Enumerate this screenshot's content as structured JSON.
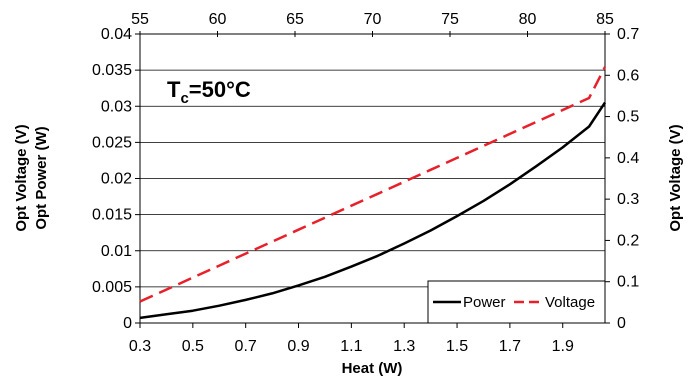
{
  "chart_data": {
    "type": "line",
    "x": [
      0.3,
      0.4,
      0.5,
      0.6,
      0.7,
      0.8,
      0.9,
      1.0,
      1.1,
      1.2,
      1.3,
      1.4,
      1.5,
      1.6,
      1.7,
      1.8,
      1.9,
      2.0,
      2.06
    ],
    "series": [
      {
        "name": "Power",
        "axis": "left",
        "color": "#000000",
        "dash": "solid",
        "values": [
          0.0007,
          0.0012,
          0.0017,
          0.0024,
          0.0032,
          0.0041,
          0.0052,
          0.0064,
          0.0078,
          0.0093,
          0.011,
          0.0128,
          0.0148,
          0.0169,
          0.0192,
          0.0217,
          0.0243,
          0.0272,
          0.0305
        ]
      },
      {
        "name": "Voltage",
        "axis": "right",
        "color": "#e8202a",
        "dash": "dashed",
        "values": [
          0.052,
          0.081,
          0.11,
          0.139,
          0.168,
          0.197,
          0.226,
          0.255,
          0.284,
          0.313,
          0.342,
          0.371,
          0.4,
          0.429,
          0.458,
          0.487,
          0.516,
          0.545,
          0.62
        ]
      }
    ],
    "xlabel": "Heat (W)",
    "xlim": [
      0.3,
      2.06
    ],
    "xticks": [
      "0.3",
      "0.5",
      "0.7",
      "0.9",
      "1.1",
      "1.3",
      "1.5",
      "1.7",
      "1.9"
    ],
    "x2ticks": [
      "55",
      "60",
      "65",
      "70",
      "75",
      "80",
      "85"
    ],
    "x2lim": [
      55,
      85
    ],
    "ylabel_outer": "Opt Voltage (V)",
    "ylabel": "Opt Power (W)",
    "ylim": [
      0,
      0.04
    ],
    "yticks": [
      "0",
      "0.005",
      "0.01",
      "0.015",
      "0.02",
      "0.025",
      "0.03",
      "0.035",
      "0.04"
    ],
    "y2label": "Opt Voltage (V)",
    "y2lim": [
      0,
      0.7
    ],
    "y2ticks": [
      "0",
      "0.1",
      "0.2",
      "0.3",
      "0.4",
      "0.5",
      "0.6",
      "0.7"
    ],
    "annotation": {
      "main": "T",
      "sub": "c",
      "rest": "=50°C",
      "color": "#1f5fbf"
    },
    "grid": "horizontal",
    "legend": {
      "placement": "bottom-right",
      "items": [
        "Power",
        "Voltage"
      ]
    }
  }
}
